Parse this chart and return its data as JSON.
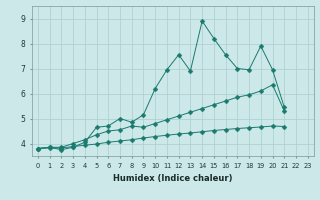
{
  "xlabel": "Humidex (Indice chaleur)",
  "x": [
    0,
    1,
    2,
    3,
    4,
    5,
    6,
    7,
    8,
    9,
    10,
    11,
    12,
    13,
    14,
    15,
    16,
    17,
    18,
    19,
    20,
    21,
    22,
    23
  ],
  "line1": [
    3.8,
    3.85,
    3.75,
    3.85,
    4.05,
    4.65,
    4.7,
    5.0,
    4.85,
    5.15,
    6.2,
    6.95,
    7.55,
    6.9,
    8.9,
    8.2,
    7.55,
    7.0,
    6.95,
    7.9,
    6.95,
    5.45,
    null,
    null
  ],
  "line2": [
    3.8,
    3.85,
    3.85,
    4.0,
    4.15,
    4.35,
    4.5,
    4.55,
    4.7,
    4.65,
    4.8,
    4.95,
    5.1,
    5.25,
    5.4,
    5.55,
    5.7,
    5.85,
    5.95,
    6.1,
    6.35,
    5.3,
    null,
    null
  ],
  "line3": [
    3.8,
    3.82,
    3.82,
    3.88,
    3.93,
    3.98,
    4.05,
    4.1,
    4.15,
    4.22,
    4.28,
    4.33,
    4.38,
    4.42,
    4.47,
    4.52,
    4.56,
    4.6,
    4.63,
    4.66,
    4.7,
    4.68,
    null,
    null
  ],
  "line_color": "#1a7a6e",
  "bg_color": "#cce8e8",
  "grid_color": "#aacece",
  "ylim": [
    3.5,
    9.5
  ],
  "yticks": [
    4,
    5,
    6,
    7,
    8,
    9
  ],
  "marker": "D",
  "markersize": 2.5
}
